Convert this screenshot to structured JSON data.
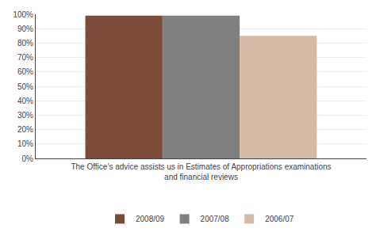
{
  "chart_data": {
    "type": "bar",
    "xlabel": "The Office’s advice assists us in Estimates of Appropriations examinations\nand financial reviews",
    "categories": [
      null
    ],
    "series": [
      {
        "name": "2008/09",
        "color": "#7B4C3A",
        "values": [
          99
        ]
      },
      {
        "name": "2007/08",
        "color": "#808080",
        "values": [
          99
        ]
      },
      {
        "name": "2006/07",
        "color": "#D4BBA8",
        "values": [
          85
        ]
      }
    ],
    "ylim": [
      0,
      100
    ],
    "yticks": [
      {
        "value": 0,
        "label": "0%"
      },
      {
        "value": 10,
        "label": "10%"
      },
      {
        "value": 20,
        "label": "20%"
      },
      {
        "value": 30,
        "label": "30%"
      },
      {
        "value": 40,
        "label": "40%"
      },
      {
        "value": 50,
        "label": "50%"
      },
      {
        "value": 60,
        "label": "60%"
      },
      {
        "value": 70,
        "label": "70%"
      },
      {
        "value": 80,
        "label": "80%"
      },
      {
        "value": 90,
        "label": "90%"
      },
      {
        "value": 100,
        "label": "100%"
      }
    ],
    "grid": true,
    "legend": "bottom",
    "tick_labels": "y"
  }
}
